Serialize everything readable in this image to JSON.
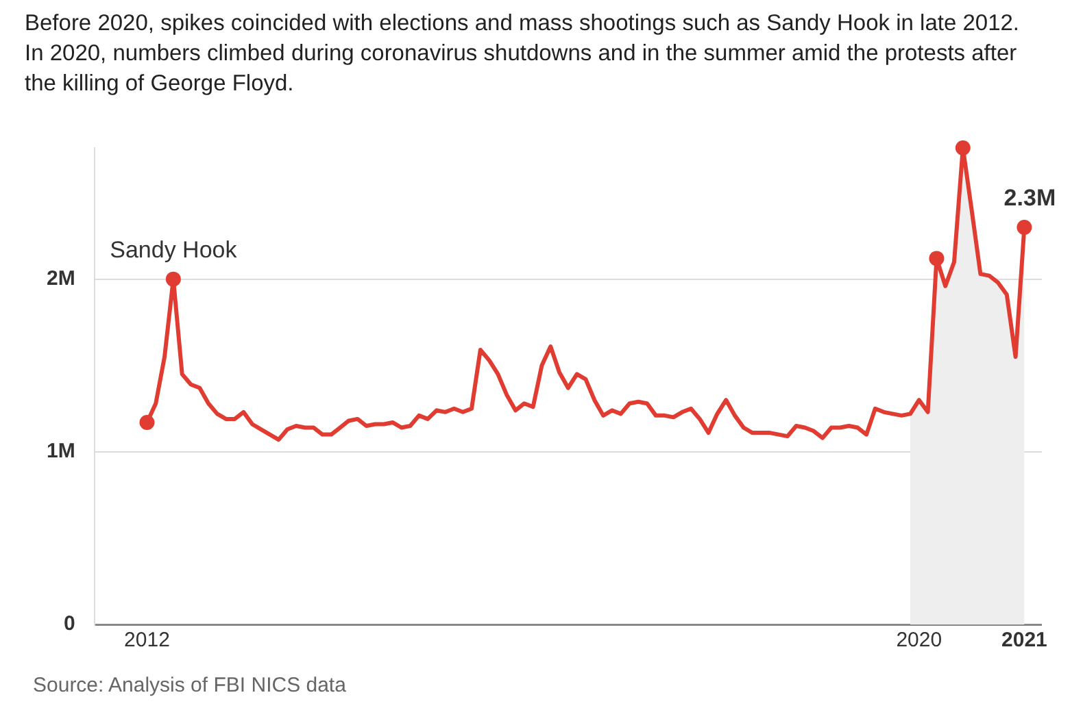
{
  "chart_data": {
    "type": "line",
    "title": "Before 2020, spikes coincided with elections and mass shootings such as Sandy Hook in late 2012. In 2020, numbers climbed during coronavirus shutdowns and in the summer amid the protests after the killing of George Floyd.",
    "x": [
      "2012-09",
      "2012-10",
      "2012-11",
      "2012-12",
      "2013-01",
      "2013-02",
      "2013-03",
      "2013-04",
      "2013-05",
      "2013-06",
      "2013-07",
      "2013-08",
      "2013-09",
      "2013-10",
      "2013-11",
      "2013-12",
      "2014-01",
      "2014-02",
      "2014-03",
      "2014-04",
      "2014-05",
      "2014-06",
      "2014-07",
      "2014-08",
      "2014-09",
      "2014-10",
      "2014-11",
      "2014-12",
      "2015-01",
      "2015-02",
      "2015-03",
      "2015-04",
      "2015-05",
      "2015-06",
      "2015-07",
      "2015-08",
      "2015-09",
      "2015-10",
      "2015-11",
      "2015-12",
      "2016-01",
      "2016-02",
      "2016-03",
      "2016-04",
      "2016-05",
      "2016-06",
      "2016-07",
      "2016-08",
      "2016-09",
      "2016-10",
      "2016-11",
      "2016-12",
      "2017-01",
      "2017-02",
      "2017-03",
      "2017-04",
      "2017-05",
      "2017-06",
      "2017-07",
      "2017-08",
      "2017-09",
      "2017-10",
      "2017-11",
      "2017-12",
      "2018-01",
      "2018-02",
      "2018-03",
      "2018-04",
      "2018-05",
      "2018-06",
      "2018-07",
      "2018-08",
      "2018-09",
      "2018-10",
      "2018-11",
      "2018-12",
      "2019-01",
      "2019-02",
      "2019-03",
      "2019-04",
      "2019-05",
      "2019-06",
      "2019-07",
      "2019-08",
      "2019-09",
      "2019-10",
      "2019-11",
      "2019-12",
      "2020-01",
      "2020-02",
      "2020-03",
      "2020-04",
      "2020-05",
      "2020-06",
      "2020-07",
      "2020-08",
      "2020-09",
      "2020-10",
      "2020-11",
      "2020-12",
      "2021-01"
    ],
    "series": [
      {
        "type": "area",
        "color": "#eeeeee",
        "x": [
          "2019-12",
          "2020-01",
          "2020-02",
          "2020-03",
          "2020-04",
          "2020-05",
          "2020-06",
          "2020-07",
          "2020-08",
          "2020-09",
          "2020-10",
          "2020-11",
          "2020-12",
          "2021-01"
        ],
        "values": [
          1.22,
          1.3,
          1.23,
          2.12,
          1.96,
          2.1,
          2.76,
          2.4,
          2.03,
          2.02,
          1.98,
          1.91,
          1.55,
          2.3
        ]
      },
      {
        "color": "#e03c31",
        "values": [
          1.17,
          1.28,
          1.55,
          2.0,
          1.45,
          1.39,
          1.37,
          1.28,
          1.22,
          1.19,
          1.19,
          1.23,
          1.16,
          1.13,
          1.1,
          1.07,
          1.13,
          1.15,
          1.14,
          1.14,
          1.1,
          1.1,
          1.14,
          1.18,
          1.19,
          1.15,
          1.16,
          1.16,
          1.17,
          1.14,
          1.15,
          1.21,
          1.19,
          1.24,
          1.23,
          1.25,
          1.23,
          1.25,
          1.59,
          1.53,
          1.45,
          1.33,
          1.24,
          1.28,
          1.26,
          1.5,
          1.61,
          1.46,
          1.37,
          1.45,
          1.42,
          1.3,
          1.21,
          1.24,
          1.22,
          1.28,
          1.29,
          1.28,
          1.21,
          1.21,
          1.2,
          1.23,
          1.25,
          1.19,
          1.11,
          1.22,
          1.3,
          1.21,
          1.14,
          1.11,
          1.11,
          1.11,
          1.1,
          1.09,
          1.15,
          1.14,
          1.12,
          1.08,
          1.14,
          1.14,
          1.15,
          1.14,
          1.1,
          1.25,
          1.23,
          1.22,
          1.21,
          1.22,
          1.3,
          1.23,
          2.12,
          1.96,
          2.1,
          2.76,
          2.4,
          2.03,
          2.02,
          1.98,
          1.91,
          1.55,
          2.3
        ]
      },
      {
        "type": "scatter",
        "color": "#e03c31",
        "marker": "circle",
        "x": [
          "2012-09",
          "2012-12",
          "2020-03",
          "2020-06",
          "2021-01"
        ],
        "values": [
          1.17,
          2.0,
          2.12,
          2.76,
          2.3
        ]
      }
    ],
    "xlim": [
      "2012-03",
      "2021-03"
    ],
    "xticks": [
      {
        "value": "2012-09",
        "label": "2012"
      },
      {
        "value": "2020-01",
        "label": "2020"
      },
      {
        "value": "2021-01",
        "label": "2021"
      }
    ],
    "ylim": [
      0,
      2.76
    ],
    "yticks": [
      {
        "value": 0,
        "label": "0"
      },
      {
        "value": 1,
        "label": "1M"
      },
      {
        "value": 2,
        "label": "2M"
      }
    ],
    "grid": "y",
    "annotations": [
      {
        "text": "Sandy Hook",
        "x": "2012-12",
        "y": 2.0
      },
      {
        "text": "2.3M",
        "x": "2021-01",
        "y": 2.3
      },
      "Source: Analysis of FBI NICS data"
    ]
  }
}
